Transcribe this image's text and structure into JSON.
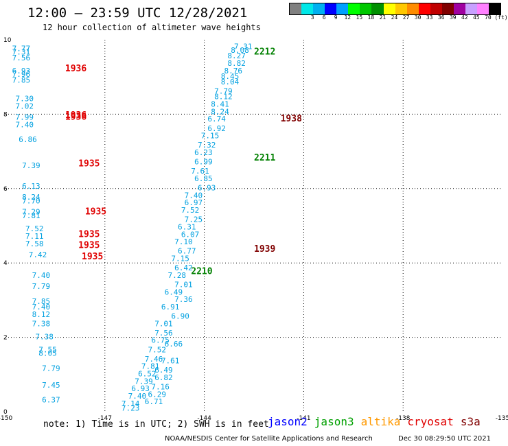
{
  "header": {
    "title": "12:00 — 23:59 UTC 12/28/2021",
    "subtitle": "12 hour collection of altimeter wave heights"
  },
  "legend": {
    "unit": "(ft)",
    "bins": [
      {
        "label": "",
        "color": "#808080"
      },
      {
        "label": "3",
        "color": "#00e8e8"
      },
      {
        "label": "6",
        "color": "#00b0f0"
      },
      {
        "label": "9",
        "color": "#0000ff"
      },
      {
        "label": "12",
        "color": "#00a0ff"
      },
      {
        "label": "15",
        "color": "#00ff00"
      },
      {
        "label": "18",
        "color": "#00c800"
      },
      {
        "label": "21",
        "color": "#009000"
      },
      {
        "label": "24",
        "color": "#ffff00"
      },
      {
        "label": "27",
        "color": "#ffc800"
      },
      {
        "label": "30",
        "color": "#ff8c00"
      },
      {
        "label": "33",
        "color": "#ff0000"
      },
      {
        "label": "36",
        "color": "#c00000"
      },
      {
        "label": "39",
        "color": "#800000"
      },
      {
        "label": "42",
        "color": "#a000a0"
      },
      {
        "label": "45",
        "color": "#c8a0ff"
      },
      {
        "label": "70",
        "color": "#ff80ff"
      },
      {
        "label": "",
        "color": "#000000"
      }
    ]
  },
  "chart_data": {
    "type": "scatter",
    "xlim": [
      -150,
      -135
    ],
    "ylim": [
      0,
      10
    ],
    "xticks": [
      "-150",
      "-147",
      "-144",
      "-141",
      "-138",
      "-135"
    ],
    "yticks": [
      "0",
      "2",
      "4",
      "6",
      "8",
      "10"
    ],
    "wave_points": [
      {
        "lon": -149.8,
        "lat": 9.7,
        "v": "7.77"
      },
      {
        "lon": -149.8,
        "lat": 9.6,
        "v": "7.31"
      },
      {
        "lon": -149.8,
        "lat": 9.45,
        "v": "7.56"
      },
      {
        "lon": -149.8,
        "lat": 9.1,
        "v": "6.93"
      },
      {
        "lon": -149.8,
        "lat": 9.0,
        "v": "7.96"
      },
      {
        "lon": -149.8,
        "lat": 8.85,
        "v": "7.85"
      },
      {
        "lon": -149.7,
        "lat": 8.35,
        "v": "7.30"
      },
      {
        "lon": -149.7,
        "lat": 8.15,
        "v": "7.02"
      },
      {
        "lon": -149.7,
        "lat": 7.85,
        "v": "7.99"
      },
      {
        "lon": -149.7,
        "lat": 7.65,
        "v": "7.40"
      },
      {
        "lon": -149.6,
        "lat": 7.25,
        "v": "6.86"
      },
      {
        "lon": -149.5,
        "lat": 6.55,
        "v": "7.39"
      },
      {
        "lon": -149.5,
        "lat": 6.0,
        "v": "6.13"
      },
      {
        "lon": -149.5,
        "lat": 5.7,
        "v": "8.24"
      },
      {
        "lon": -149.5,
        "lat": 5.6,
        "v": "7.70"
      },
      {
        "lon": -149.5,
        "lat": 5.3,
        "v": "7.29"
      },
      {
        "lon": -149.5,
        "lat": 5.2,
        "v": "7.81"
      },
      {
        "lon": -149.4,
        "lat": 4.85,
        "v": "7.52"
      },
      {
        "lon": -149.4,
        "lat": 4.65,
        "v": "7.11"
      },
      {
        "lon": -149.4,
        "lat": 4.45,
        "v": "7.58"
      },
      {
        "lon": -149.3,
        "lat": 4.15,
        "v": "7.42"
      },
      {
        "lon": -149.2,
        "lat": 3.6,
        "v": "7.40"
      },
      {
        "lon": -149.2,
        "lat": 3.3,
        "v": "7.79"
      },
      {
        "lon": -149.2,
        "lat": 2.9,
        "v": "7.85"
      },
      {
        "lon": -149.2,
        "lat": 2.75,
        "v": "7.40"
      },
      {
        "lon": -149.2,
        "lat": 2.55,
        "v": "8.12"
      },
      {
        "lon": -149.2,
        "lat": 2.3,
        "v": "7.38"
      },
      {
        "lon": -149.1,
        "lat": 1.95,
        "v": "7.38"
      },
      {
        "lon": -149.0,
        "lat": 1.6,
        "v": "7.55"
      },
      {
        "lon": -149.0,
        "lat": 1.5,
        "v": "8.05"
      },
      {
        "lon": -148.9,
        "lat": 1.1,
        "v": "7.79"
      },
      {
        "lon": -148.9,
        "lat": 0.65,
        "v": "7.45"
      },
      {
        "lon": -148.9,
        "lat": 0.25,
        "v": "6.37"
      },
      {
        "lon": -143.1,
        "lat": 9.75,
        "v": "7.31"
      },
      {
        "lon": -143.2,
        "lat": 9.65,
        "v": "8.08"
      },
      {
        "lon": -143.3,
        "lat": 9.5,
        "v": "8.27"
      },
      {
        "lon": -143.3,
        "lat": 9.3,
        "v": "8.82"
      },
      {
        "lon": -143.4,
        "lat": 9.1,
        "v": "8.76"
      },
      {
        "lon": -143.5,
        "lat": 8.95,
        "v": "8.45"
      },
      {
        "lon": -143.5,
        "lat": 8.8,
        "v": "8.04"
      },
      {
        "lon": -143.7,
        "lat": 8.55,
        "v": "7.79"
      },
      {
        "lon": -143.7,
        "lat": 8.4,
        "v": "8.12"
      },
      {
        "lon": -143.8,
        "lat": 8.2,
        "v": "8.41"
      },
      {
        "lon": -143.8,
        "lat": 8.0,
        "v": "8.24"
      },
      {
        "lon": -143.9,
        "lat": 7.8,
        "v": "6.74"
      },
      {
        "lon": -143.9,
        "lat": 7.55,
        "v": "6.92"
      },
      {
        "lon": -144.1,
        "lat": 7.35,
        "v": "7.15"
      },
      {
        "lon": -144.2,
        "lat": 7.1,
        "v": "7.32"
      },
      {
        "lon": -144.3,
        "lat": 6.9,
        "v": "6.23"
      },
      {
        "lon": -144.3,
        "lat": 6.65,
        "v": "6.99"
      },
      {
        "lon": -144.4,
        "lat": 6.4,
        "v": "7.61"
      },
      {
        "lon": -144.3,
        "lat": 6.2,
        "v": "6.85"
      },
      {
        "lon": -144.2,
        "lat": 5.95,
        "v": "6.93"
      },
      {
        "lon": -144.6,
        "lat": 5.75,
        "v": "7.40"
      },
      {
        "lon": -144.6,
        "lat": 5.55,
        "v": "6.97"
      },
      {
        "lon": -144.7,
        "lat": 5.35,
        "v": "7.52"
      },
      {
        "lon": -144.6,
        "lat": 5.1,
        "v": "7.25"
      },
      {
        "lon": -144.8,
        "lat": 4.9,
        "v": "6.31"
      },
      {
        "lon": -144.7,
        "lat": 4.7,
        "v": "6.07"
      },
      {
        "lon": -144.9,
        "lat": 4.5,
        "v": "7.10"
      },
      {
        "lon": -144.8,
        "lat": 4.25,
        "v": "6.77"
      },
      {
        "lon": -145.0,
        "lat": 4.05,
        "v": "7.15"
      },
      {
        "lon": -144.9,
        "lat": 3.8,
        "v": "6.42"
      },
      {
        "lon": -145.1,
        "lat": 3.6,
        "v": "7.28"
      },
      {
        "lon": -144.9,
        "lat": 3.35,
        "v": "7.01"
      },
      {
        "lon": -145.2,
        "lat": 3.15,
        "v": "6.49"
      },
      {
        "lon": -144.9,
        "lat": 2.95,
        "v": "7.36"
      },
      {
        "lon": -145.3,
        "lat": 2.75,
        "v": "6.91"
      },
      {
        "lon": -145.0,
        "lat": 2.5,
        "v": "6.90"
      },
      {
        "lon": -145.5,
        "lat": 2.3,
        "v": "7.01"
      },
      {
        "lon": -145.5,
        "lat": 2.05,
        "v": "7.56"
      },
      {
        "lon": -145.6,
        "lat": 1.85,
        "v": "6.75"
      },
      {
        "lon": -145.2,
        "lat": 1.75,
        "v": "6.66"
      },
      {
        "lon": -145.7,
        "lat": 1.6,
        "v": "7.52"
      },
      {
        "lon": -145.8,
        "lat": 1.35,
        "v": "7.46"
      },
      {
        "lon": -145.3,
        "lat": 1.3,
        "v": "7.61"
      },
      {
        "lon": -145.9,
        "lat": 1.15,
        "v": "7.81"
      },
      {
        "lon": -145.5,
        "lat": 1.05,
        "v": "6.49"
      },
      {
        "lon": -146.0,
        "lat": 0.95,
        "v": "6.52"
      },
      {
        "lon": -145.5,
        "lat": 0.85,
        "v": "6.82"
      },
      {
        "lon": -146.1,
        "lat": 0.75,
        "v": "7.39"
      },
      {
        "lon": -145.6,
        "lat": 0.6,
        "v": "7.16"
      },
      {
        "lon": -146.2,
        "lat": 0.55,
        "v": "6.93"
      },
      {
        "lon": -145.7,
        "lat": 0.4,
        "v": "6.29"
      },
      {
        "lon": -146.3,
        "lat": 0.35,
        "v": "7.40"
      },
      {
        "lon": -145.8,
        "lat": 0.2,
        "v": "6.71"
      },
      {
        "lon": -146.5,
        "lat": 0.15,
        "v": "7.14"
      },
      {
        "lon": -146.5,
        "lat": 0.03,
        "v": "7.23"
      }
    ],
    "satellite_labels": [
      {
        "lon": -148.2,
        "lat": 9.15,
        "text": "1936",
        "color": "#e00000"
      },
      {
        "lon": -148.2,
        "lat": 7.9,
        "text": "1936",
        "color": "#e00000"
      },
      {
        "lon": -148.2,
        "lat": 7.85,
        "text": "1936",
        "color": "#e00000"
      },
      {
        "lon": -147.8,
        "lat": 6.6,
        "text": "1935",
        "color": "#e00000"
      },
      {
        "lon": -147.6,
        "lat": 5.3,
        "text": "1935",
        "color": "#e00000"
      },
      {
        "lon": -147.8,
        "lat": 4.7,
        "text": "1935",
        "color": "#e00000"
      },
      {
        "lon": -147.8,
        "lat": 4.4,
        "text": "1935",
        "color": "#e00000"
      },
      {
        "lon": -147.7,
        "lat": 4.1,
        "text": "1935",
        "color": "#e00000"
      },
      {
        "lon": -142.5,
        "lat": 9.6,
        "text": "2212",
        "color": "#008000"
      },
      {
        "lon": -141.7,
        "lat": 7.8,
        "text": "1938",
        "color": "#800000"
      },
      {
        "lon": -142.5,
        "lat": 6.75,
        "text": "2211",
        "color": "#008000"
      },
      {
        "lon": -142.5,
        "lat": 4.3,
        "text": "1939",
        "color": "#800000"
      },
      {
        "lon": -144.4,
        "lat": 3.7,
        "text": "2210",
        "color": "#008000"
      }
    ]
  },
  "footer": {
    "note": "note:  1) Time is in UTC; 2) SWH is in feet",
    "satellites": [
      {
        "name": "jason2",
        "color": "#0000ff"
      },
      {
        "name": "jason3",
        "color": "#00a000"
      },
      {
        "name": "altika",
        "color": "#ff9900"
      },
      {
        "name": "cryosat",
        "color": "#e00000"
      },
      {
        "name": "s3a",
        "color": "#800000"
      }
    ],
    "credit": "NOAA/NESDIS Center for Satellite Applications and Research",
    "stamp": "Dec 30 08:29:50 UTC 2021"
  }
}
